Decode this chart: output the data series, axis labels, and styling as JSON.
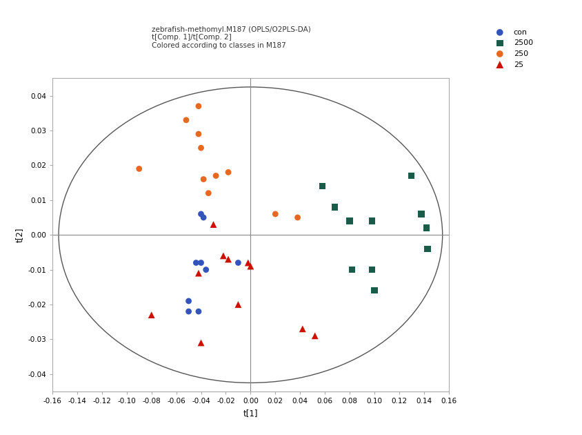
{
  "title_lines": [
    "zebrafish-methomyl.M187 (OPLS/O2PLS-DA)",
    "t[Comp. 1]/t[Comp. 2]",
    "Colored according to classes in M187"
  ],
  "xlabel": "t[1]",
  "ylabel": "t[2]",
  "xlim": [
    -0.16,
    0.16
  ],
  "ylim": [
    -0.045,
    0.045
  ],
  "xticks": [
    -0.16,
    -0.14,
    -0.12,
    -0.1,
    -0.08,
    -0.06,
    -0.04,
    -0.02,
    0.0,
    0.02,
    0.04,
    0.06,
    0.08,
    0.1,
    0.12,
    0.14,
    0.16
  ],
  "yticks": [
    -0.04,
    -0.03,
    -0.02,
    -0.01,
    0.0,
    0.01,
    0.02,
    0.03,
    0.04
  ],
  "ellipse_a": 0.155,
  "ellipse_b": 0.0425,
  "groups": {
    "con": {
      "color": "#3355bb",
      "marker": "o",
      "label": "con",
      "points": [
        [
          -0.04,
          0.006
        ],
        [
          -0.038,
          0.005
        ],
        [
          -0.044,
          -0.008
        ],
        [
          -0.04,
          -0.008
        ],
        [
          -0.036,
          -0.01
        ],
        [
          -0.05,
          -0.019
        ],
        [
          -0.042,
          -0.022
        ],
        [
          -0.05,
          -0.022
        ],
        [
          -0.01,
          -0.008
        ]
      ]
    },
    "2500": {
      "color": "#1a5c4a",
      "marker": "s",
      "label": "2500",
      "points": [
        [
          0.058,
          0.014
        ],
        [
          0.068,
          0.008
        ],
        [
          0.08,
          0.004
        ],
        [
          0.098,
          0.004
        ],
        [
          0.098,
          -0.01
        ],
        [
          0.082,
          -0.01
        ],
        [
          0.1,
          -0.016
        ],
        [
          0.13,
          0.017
        ],
        [
          0.138,
          0.006
        ],
        [
          0.142,
          0.002
        ],
        [
          0.143,
          -0.004
        ]
      ]
    },
    "250": {
      "color": "#e86820",
      "marker": "o",
      "label": "250",
      "points": [
        [
          -0.09,
          0.019
        ],
        [
          -0.052,
          0.033
        ],
        [
          -0.042,
          0.037
        ],
        [
          -0.042,
          0.029
        ],
        [
          -0.04,
          0.025
        ],
        [
          -0.038,
          0.016
        ],
        [
          -0.034,
          0.012
        ],
        [
          -0.028,
          0.017
        ],
        [
          -0.018,
          0.018
        ],
        [
          0.02,
          0.006
        ],
        [
          0.038,
          0.005
        ]
      ]
    },
    "25": {
      "color": "#cc1100",
      "marker": "^",
      "label": "25",
      "points": [
        [
          -0.08,
          -0.023
        ],
        [
          -0.042,
          -0.011
        ],
        [
          -0.04,
          -0.031
        ],
        [
          -0.03,
          0.003
        ],
        [
          -0.022,
          -0.006
        ],
        [
          -0.018,
          -0.007
        ],
        [
          -0.01,
          -0.02
        ],
        [
          -0.002,
          -0.008
        ],
        [
          0.0,
          -0.009
        ],
        [
          0.042,
          -0.027
        ],
        [
          0.052,
          -0.029
        ]
      ]
    }
  },
  "background_color": "#ffffff",
  "spine_color": "#aaaaaa",
  "crosshair_color": "#888888",
  "title_fontsize": 7.5,
  "axis_label_fontsize": 8.5,
  "tick_fontsize": 7.5,
  "legend_fontsize": 8,
  "marker_size": 40
}
